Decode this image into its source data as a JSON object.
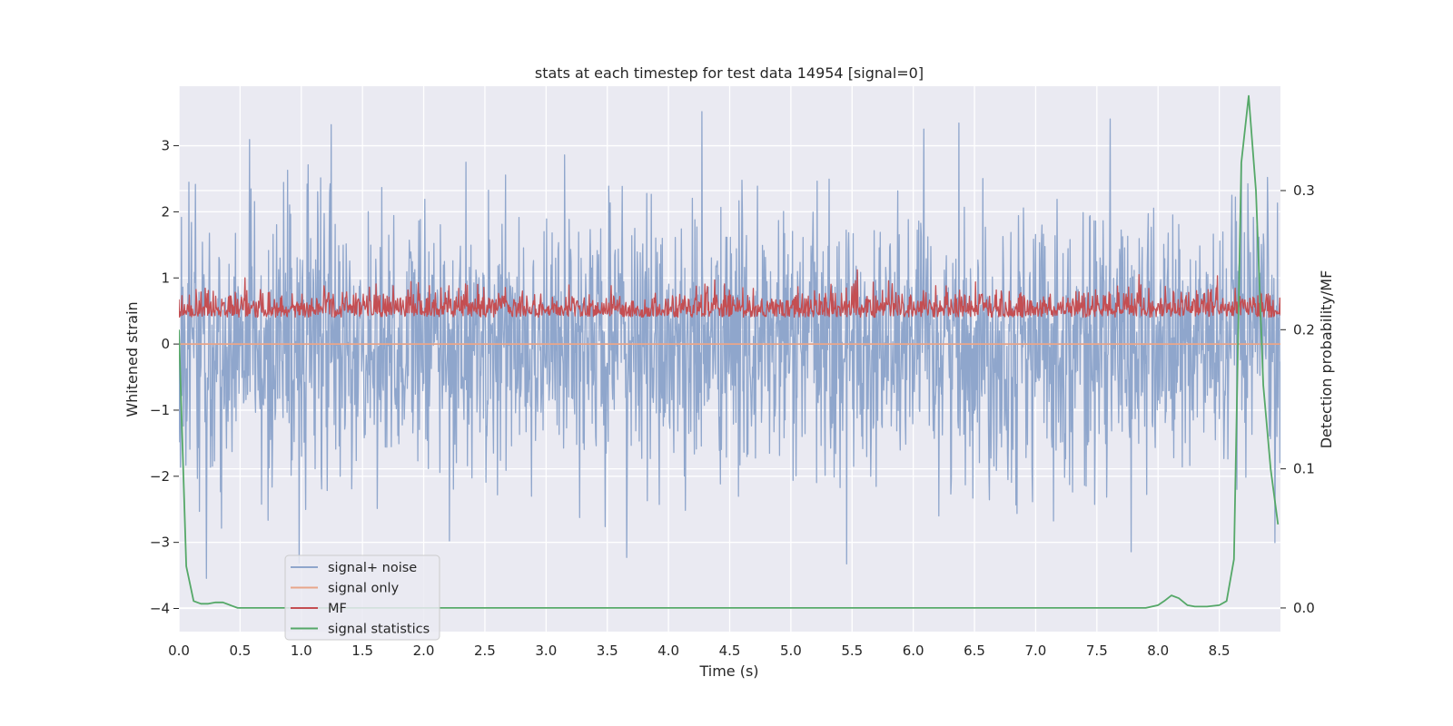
{
  "chart_data": {
    "type": "line",
    "title": "stats at each timestep for test data 14954 [signal=0]",
    "xlabel": "Time (s)",
    "ylabel": "Whitened strain",
    "y2label": "Detection probability/MF",
    "xlim": [
      0.0,
      9.0
    ],
    "ylim": [
      -4.35,
      3.9
    ],
    "y2lim": [
      -0.017,
      0.375
    ],
    "xticks": [
      "0.0",
      "0.5",
      "1.0",
      "1.5",
      "2.0",
      "2.5",
      "3.0",
      "3.5",
      "4.0",
      "4.5",
      "5.0",
      "5.5",
      "6.0",
      "6.5",
      "7.0",
      "7.5",
      "8.0",
      "8.5"
    ],
    "yticks": [
      "3",
      "2",
      "1",
      "0",
      "−1",
      "−2",
      "−3",
      "−4"
    ],
    "y2ticks": [
      "0.3",
      "0.2",
      "0.1",
      "0.0"
    ],
    "grid": true,
    "legend_position": "lower-left",
    "series": [
      {
        "name": "signal+ noise",
        "axis": "left",
        "color": "#8fa6cc",
        "kind": "noise",
        "description_values": {
          "mean": 0.0,
          "std": 1.0,
          "min": -4.0,
          "max": 3.57
        }
      },
      {
        "name": "signal only",
        "axis": "left",
        "color": "#e8a58a",
        "x": [
          0.0,
          9.0
        ],
        "values": [
          0.0,
          0.0
        ]
      },
      {
        "name": "MF",
        "axis": "right",
        "color": "#c44e52",
        "kind": "noise",
        "description_values": {
          "mean": 0.212,
          "min": 0.195,
          "max": 0.243
        }
      },
      {
        "name": "signal statistics",
        "axis": "right",
        "color": "#55a868",
        "x": [
          0.0,
          0.06,
          0.12,
          0.18,
          0.24,
          0.3,
          0.36,
          0.42,
          0.48,
          0.6,
          1.0,
          2.0,
          3.0,
          4.0,
          4.9,
          5.0,
          6.0,
          7.0,
          7.9,
          8.0,
          8.05,
          8.11,
          8.17,
          8.24,
          8.3,
          8.4,
          8.5,
          8.56,
          8.62,
          8.68,
          8.74,
          8.8,
          8.86,
          8.92,
          8.98
        ],
        "values": [
          0.2,
          0.03,
          0.005,
          0.003,
          0.003,
          0.004,
          0.004,
          0.002,
          0.0,
          0.0,
          0.0,
          0.0,
          0.0,
          0.0,
          0.0,
          0.0,
          0.0,
          0.0,
          0.0,
          0.002,
          0.005,
          0.009,
          0.007,
          0.002,
          0.001,
          0.001,
          0.002,
          0.005,
          0.035,
          0.32,
          0.368,
          0.3,
          0.16,
          0.1,
          0.06
        ]
      }
    ]
  }
}
